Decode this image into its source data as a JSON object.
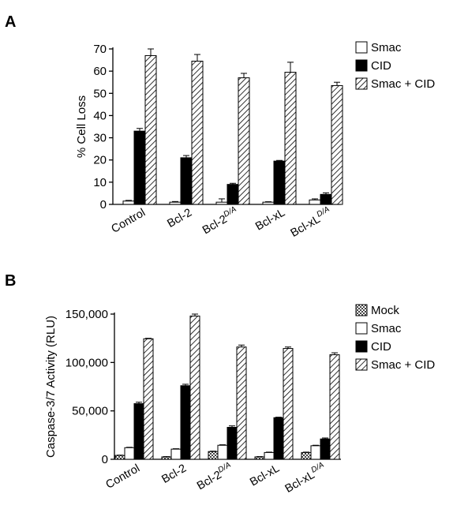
{
  "chart_data": [
    {
      "panel": "A",
      "type": "bar",
      "ylabel": "% Cell Loss",
      "ylim": [
        0,
        70
      ],
      "yticks": [
        0,
        10,
        20,
        30,
        40,
        50,
        60,
        70
      ],
      "categories": [
        {
          "main": "Control",
          "sup": ""
        },
        {
          "main": "Bcl-2",
          "sup": ""
        },
        {
          "main": "Bcl-2",
          "sup": "D/A"
        },
        {
          "main": "Bcl-xL",
          "sup": ""
        },
        {
          "main": "Bcl-xL",
          "sup": "D/A"
        }
      ],
      "legend_position": "top-right",
      "series": [
        {
          "name": "Smac",
          "fill": "white",
          "values": [
            1.5,
            1.0,
            1.0,
            1.0,
            2.0
          ],
          "errors": [
            0.3,
            0.3,
            1.5,
            0.2,
            0.5
          ]
        },
        {
          "name": "CID",
          "fill": "black",
          "values": [
            33,
            21,
            9,
            19.5,
            4.5
          ],
          "errors": [
            1.2,
            1.0,
            0.5,
            0.3,
            0.7
          ]
        },
        {
          "name": "Smac + CID",
          "fill": "hatch",
          "values": [
            67,
            64.5,
            57,
            59.5,
            53.5
          ],
          "errors": [
            3.0,
            3.0,
            2.0,
            4.5,
            1.5
          ]
        }
      ]
    },
    {
      "panel": "B",
      "type": "bar",
      "ylabel": "Caspase-3/7 Activity (RLU)",
      "ylim": [
        0,
        150000
      ],
      "yticks": [
        0,
        50000,
        100000,
        150000
      ],
      "ytick_labels": [
        "0",
        "50,000",
        "100,000",
        "150,000"
      ],
      "categories": [
        {
          "main": "Control",
          "sup": ""
        },
        {
          "main": "Bcl-2",
          "sup": ""
        },
        {
          "main": "Bcl-2",
          "sup": "D/A"
        },
        {
          "main": "Bcl-xL",
          "sup": ""
        },
        {
          "main": "Bcl-xL",
          "sup": "D/A"
        }
      ],
      "legend_position": "top-right",
      "series": [
        {
          "name": "Mock",
          "fill": "checker",
          "values": [
            4000,
            2500,
            8000,
            2500,
            7000
          ],
          "errors": [
            300,
            300,
            400,
            300,
            400
          ]
        },
        {
          "name": "Smac",
          "fill": "white",
          "values": [
            12000,
            10500,
            14500,
            7000,
            14000
          ],
          "errors": [
            400,
            400,
            500,
            400,
            500
          ]
        },
        {
          "name": "CID",
          "fill": "black",
          "values": [
            57500,
            76000,
            33000,
            43000,
            21000
          ],
          "errors": [
            1500,
            1500,
            1500,
            500,
            1000
          ]
        },
        {
          "name": "Smac + CID",
          "fill": "hatch",
          "values": [
            124500,
            148000,
            116000,
            114500,
            108000
          ],
          "errors": [
            500,
            2000,
            2000,
            1500,
            2000
          ]
        }
      ]
    }
  ]
}
